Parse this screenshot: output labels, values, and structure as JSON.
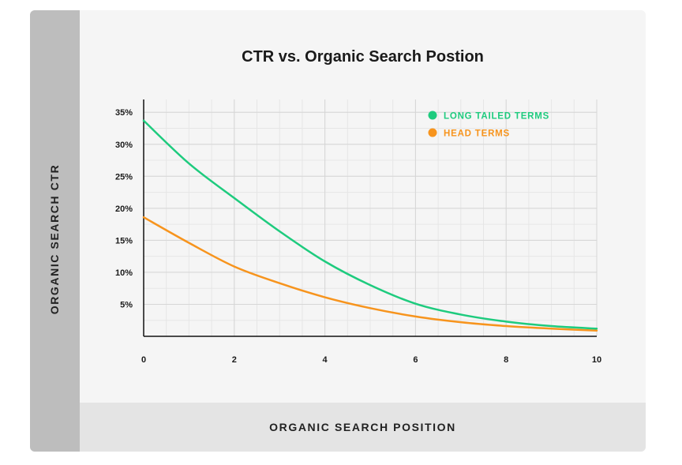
{
  "chart_data": {
    "type": "line",
    "title": "CTR vs. Organic Search Postion",
    "xlabel": "ORGANIC SEARCH POSITION",
    "ylabel": "ORGANIC SEARCH CTR",
    "xlim": [
      0,
      10
    ],
    "ylim": [
      0,
      37
    ],
    "x_ticks": [
      "0",
      "2",
      "4",
      "6",
      "8",
      "10"
    ],
    "y_ticks": [
      "5%",
      "10%",
      "15%",
      "20%",
      "25%",
      "30%",
      "35%"
    ],
    "grid": true,
    "legend_position": "top-right",
    "x": [
      0,
      1,
      2,
      3,
      4,
      5,
      6,
      7,
      8,
      9,
      10
    ],
    "series": [
      {
        "name": "LONG TAILED TERMS",
        "color": "#1ecb7e",
        "values": [
          33.7,
          27.0,
          21.6,
          16.4,
          11.7,
          8.0,
          5.1,
          3.4,
          2.3,
          1.6,
          1.2
        ]
      },
      {
        "name": "HEAD TERMS",
        "color": "#f7941d",
        "values": [
          18.6,
          14.6,
          10.9,
          8.3,
          6.1,
          4.4,
          3.1,
          2.2,
          1.6,
          1.2,
          0.9
        ]
      }
    ]
  }
}
